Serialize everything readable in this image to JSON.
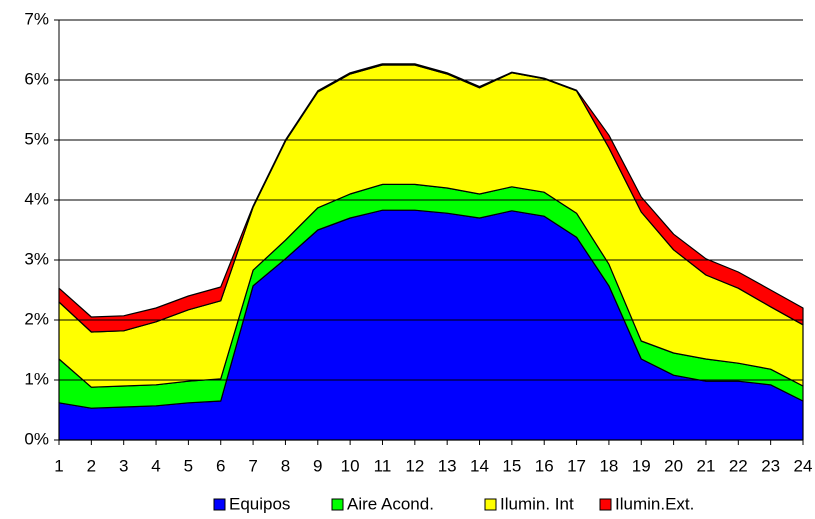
{
  "chart_data": {
    "type": "stacked_area",
    "x": [
      1,
      2,
      3,
      4,
      5,
      6,
      7,
      8,
      9,
      10,
      11,
      12,
      13,
      14,
      15,
      16,
      17,
      18,
      19,
      20,
      21,
      22,
      23,
      24
    ],
    "xlim": [
      1,
      24
    ],
    "xticks": [
      1,
      2,
      3,
      4,
      5,
      6,
      7,
      8,
      9,
      10,
      11,
      12,
      13,
      14,
      15,
      16,
      17,
      18,
      19,
      20,
      21,
      22,
      23,
      24
    ],
    "ylim": [
      0,
      7
    ],
    "yticks": [
      {
        "value": 0,
        "label": "0%"
      },
      {
        "value": 1,
        "label": "1%"
      },
      {
        "value": 2,
        "label": "2%"
      },
      {
        "value": 3,
        "label": "3%"
      },
      {
        "value": 4,
        "label": "4%"
      },
      {
        "value": 5,
        "label": "5%"
      },
      {
        "value": 6,
        "label": "6%"
      },
      {
        "value": 7,
        "label": "7%"
      }
    ],
    "grid": true,
    "legend": "bottom",
    "series": [
      {
        "name": "Equipos",
        "color": "#0000ff",
        "values": [
          0.62,
          0.53,
          0.55,
          0.57,
          0.62,
          0.65,
          2.57,
          3.02,
          3.5,
          3.7,
          3.83,
          3.83,
          3.78,
          3.7,
          3.82,
          3.73,
          3.38,
          2.57,
          1.35,
          1.08,
          0.98,
          0.98,
          0.92,
          0.65
        ]
      },
      {
        "name": "Aire Acond.",
        "color": "#00ff00",
        "values": [
          0.73,
          0.35,
          0.35,
          0.35,
          0.36,
          0.37,
          0.26,
          0.31,
          0.37,
          0.4,
          0.43,
          0.43,
          0.42,
          0.4,
          0.4,
          0.4,
          0.4,
          0.36,
          0.3,
          0.37,
          0.37,
          0.3,
          0.26,
          0.25
        ]
      },
      {
        "name": "Ilumin. Int",
        "color": "#ffff00",
        "values": [
          0.95,
          0.92,
          0.92,
          1.05,
          1.19,
          1.3,
          1.05,
          1.65,
          1.93,
          2.0,
          1.99,
          1.99,
          1.9,
          1.77,
          1.9,
          1.89,
          2.04,
          1.94,
          2.15,
          1.72,
          1.4,
          1.25,
          1.04,
          1.02
        ]
      },
      {
        "name": "Ilumin.Ext.",
        "color": "#ff0000",
        "values": [
          0.23,
          0.25,
          0.25,
          0.23,
          0.23,
          0.23,
          0.02,
          0.02,
          0.02,
          0.02,
          0.02,
          0.02,
          0.02,
          0.02,
          0.01,
          0.01,
          0.01,
          0.21,
          0.25,
          0.26,
          0.27,
          0.27,
          0.28,
          0.28
        ]
      }
    ]
  }
}
